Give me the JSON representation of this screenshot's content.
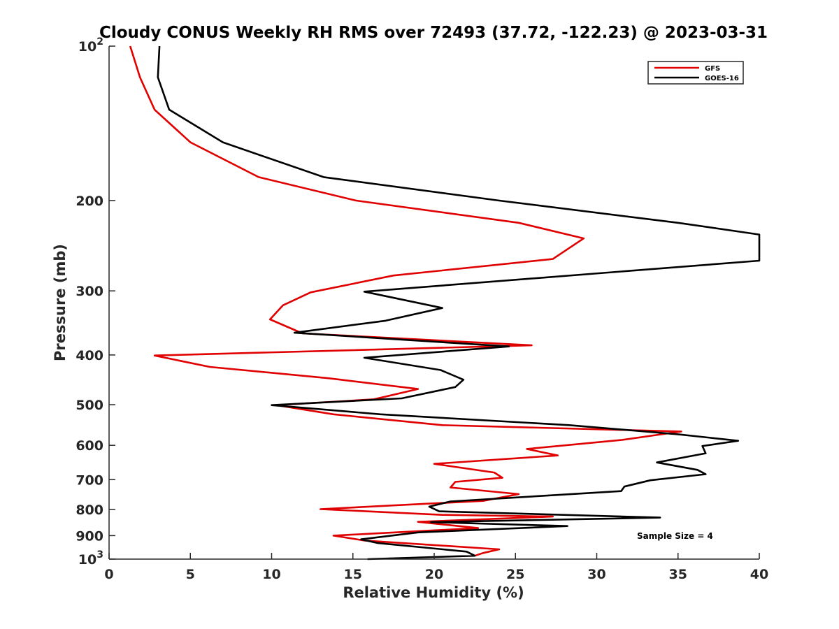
{
  "chart_data": {
    "type": "line",
    "title": "Cloudy CONUS Weekly RH RMS over 72493 (37.72, -122.23) @ 2023-03-31",
    "xlabel": "Relative Humidity (%)",
    "ylabel": "Pressure (mb)",
    "xlim": [
      0,
      40
    ],
    "ylim": [
      100,
      1000
    ],
    "yscale": "log",
    "y_reversed": true,
    "x_ticks": [
      0,
      5,
      10,
      15,
      20,
      25,
      30,
      35,
      40
    ],
    "x_tick_labels": [
      "0",
      "5",
      "10",
      "15",
      "20",
      "25",
      "30",
      "35",
      "40"
    ],
    "y_ticks": [
      100,
      200,
      300,
      400,
      500,
      600,
      700,
      800,
      900,
      1000
    ],
    "y_tick_labels": [
      {
        "base": "10",
        "exp": "2"
      },
      {
        "base": "200",
        "exp": ""
      },
      {
        "base": "300",
        "exp": ""
      },
      {
        "base": "400",
        "exp": ""
      },
      {
        "base": "500",
        "exp": ""
      },
      {
        "base": "600",
        "exp": ""
      },
      {
        "base": "700",
        "exp": ""
      },
      {
        "base": "800",
        "exp": ""
      },
      {
        "base": "900",
        "exp": ""
      },
      {
        "base": "10",
        "exp": "3"
      }
    ],
    "grid": false,
    "legend_position": "top-right",
    "annotation": "Sample Size = 4",
    "series": [
      {
        "name": "GFS",
        "color": "#e00000",
        "points": [
          [
            1.3,
            100
          ],
          [
            1.9,
            115
          ],
          [
            2.8,
            133
          ],
          [
            5.0,
            154
          ],
          [
            9.2,
            180
          ],
          [
            15.2,
            200
          ],
          [
            25.2,
            221
          ],
          [
            29.2,
            237
          ],
          [
            27.3,
            260
          ],
          [
            17.5,
            280
          ],
          [
            12.4,
            302
          ],
          [
            10.7,
            320
          ],
          [
            9.9,
            341
          ],
          [
            11.9,
            363
          ],
          [
            26.0,
            383
          ],
          [
            2.8,
            401
          ],
          [
            6.2,
            422
          ],
          [
            13.5,
            444
          ],
          [
            19.0,
            466
          ],
          [
            16.3,
            488
          ],
          [
            10.3,
            501
          ],
          [
            13.8,
            522
          ],
          [
            20.5,
            548
          ],
          [
            35.2,
            564
          ],
          [
            31.5,
            586
          ],
          [
            25.7,
            610
          ],
          [
            27.6,
            628
          ],
          [
            20.0,
            652
          ],
          [
            23.7,
            678
          ],
          [
            24.2,
            694
          ],
          [
            21.3,
            707
          ],
          [
            21.0,
            725
          ],
          [
            25.2,
            747
          ],
          [
            23.0,
            770
          ],
          [
            13.0,
            799
          ],
          [
            20.5,
            820
          ],
          [
            27.3,
            826
          ],
          [
            19.0,
            846
          ],
          [
            22.7,
            870
          ],
          [
            13.8,
            900
          ],
          [
            15.7,
            920
          ],
          [
            24.0,
            957
          ],
          [
            23.0,
            973
          ],
          [
            22.5,
            985
          ]
        ]
      },
      {
        "name": "GOES-16",
        "color": "#000000",
        "points": [
          [
            3.1,
            100
          ],
          [
            3.0,
            115
          ],
          [
            3.7,
            133
          ],
          [
            7.0,
            154
          ],
          [
            13.2,
            180
          ],
          [
            24.0,
            200
          ],
          [
            35.0,
            221
          ],
          [
            40.0,
            233
          ],
          [
            40.0,
            262
          ],
          [
            15.7,
            301
          ],
          [
            20.5,
            324
          ],
          [
            17.0,
            343
          ],
          [
            11.4,
            362
          ],
          [
            24.6,
            385
          ],
          [
            15.7,
            405
          ],
          [
            20.4,
            428
          ],
          [
            21.8,
            447
          ],
          [
            21.3,
            462
          ],
          [
            18.0,
            486
          ],
          [
            10.0,
            501
          ],
          [
            16.7,
            522
          ],
          [
            28.3,
            548
          ],
          [
            35.0,
            571
          ],
          [
            38.7,
            588
          ],
          [
            36.5,
            602
          ],
          [
            36.7,
            622
          ],
          [
            33.7,
            648
          ],
          [
            36.2,
            670
          ],
          [
            36.7,
            683
          ],
          [
            33.3,
            702
          ],
          [
            31.7,
            722
          ],
          [
            31.5,
            737
          ],
          [
            21.0,
            772
          ],
          [
            19.7,
            790
          ],
          [
            20.3,
            807
          ],
          [
            33.9,
            830
          ],
          [
            19.8,
            847
          ],
          [
            28.2,
            862
          ],
          [
            19.0,
            887
          ],
          [
            15.5,
            915
          ],
          [
            16.5,
            930
          ],
          [
            22.0,
            967
          ],
          [
            22.5,
            985
          ],
          [
            15.9,
            1000
          ]
        ]
      }
    ]
  }
}
